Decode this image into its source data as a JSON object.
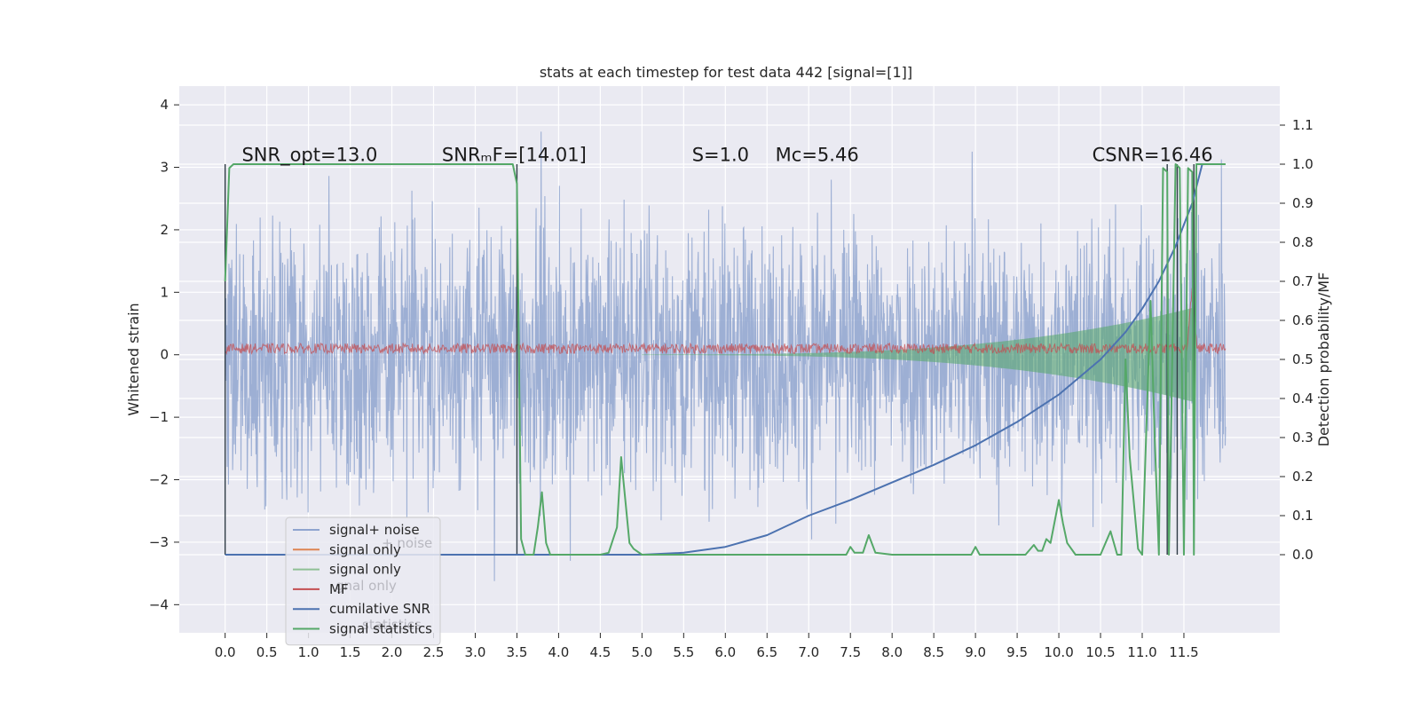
{
  "chart_data": {
    "type": "line",
    "title": "stats at each timestep for test data 442 [signal=[1]]",
    "xlabel": "",
    "ylabel": "Whitened strain",
    "y2label": "Detection probability/MF",
    "xlim": [
      -0.55,
      12.65
    ],
    "ylim": [
      -4.45,
      4.3
    ],
    "y2lim": [
      -0.2,
      1.2
    ],
    "xticks": [
      "0.0",
      "0.5",
      "1.0",
      "1.5",
      "2.0",
      "2.5",
      "3.0",
      "3.5",
      "4.0",
      "4.5",
      "5.0",
      "5.5",
      "6.0",
      "6.5",
      "7.0",
      "7.5",
      "8.0",
      "8.5",
      "9.0",
      "9.5",
      "10.0",
      "10.5",
      "11.0",
      "11.5"
    ],
    "yticks": [
      "4",
      "3",
      "2",
      "1",
      "0",
      "−1",
      "−2",
      "−3",
      "−4"
    ],
    "y2ticks": [
      "1.1",
      "1.0",
      "0.9",
      "0.8",
      "0.7",
      "0.6",
      "0.5",
      "0.4",
      "0.3",
      "0.2",
      "0.1",
      "0.0"
    ],
    "grid": true,
    "legend_position": "lower-left",
    "annotations": [
      {
        "id": "snr-opt",
        "text": "SNR_opt=13.0",
        "x": 0.2,
        "y": 3.1
      },
      {
        "id": "snr-mf",
        "text": "SNRₘF=[14.01]",
        "x": 2.6,
        "y": 3.1
      },
      {
        "id": "s-value",
        "text": "S=1.0",
        "x": 5.6,
        "y": 3.1
      },
      {
        "id": "mc-value",
        "text": "Mᴄ=5.46",
        "x": 6.6,
        "y": 3.1
      },
      {
        "id": "csnr",
        "text": "CSNR=16.46",
        "x": 10.4,
        "y": 3.1
      }
    ],
    "legend": [
      {
        "label": "signal+ noise",
        "color": "#8fa4cf"
      },
      {
        "label": "signal only",
        "color": "#dd8452"
      },
      {
        "label": "signal only",
        "color": "#8fc095"
      },
      {
        "label": "MF",
        "color": "#c44e52"
      },
      {
        "label": "cumilative SNR",
        "color": "#4c72b0"
      },
      {
        "label": "signal statistics",
        "color": "#55a868"
      }
    ],
    "legend_ghost_text": [
      "+ noise",
      "gnal only",
      "statistics"
    ],
    "series": [
      {
        "name": "cumilative SNR",
        "axis": "y2",
        "color": "#4c72b0",
        "x": [
          0,
          5.0,
          5.5,
          6.0,
          6.5,
          7.0,
          7.5,
          8.0,
          8.5,
          9.0,
          9.5,
          10.0,
          10.5,
          10.8,
          11.0,
          11.2,
          11.4,
          11.6,
          11.72
        ],
        "values": [
          0.0,
          0.0,
          0.005,
          0.02,
          0.05,
          0.1,
          0.14,
          0.185,
          0.23,
          0.28,
          0.34,
          0.41,
          0.5,
          0.57,
          0.63,
          0.7,
          0.79,
          0.9,
          1.0
        ]
      },
      {
        "name": "signal statistics",
        "axis": "y2",
        "color": "#55a868",
        "x": [
          0,
          0.05,
          0.1,
          1.0,
          2.0,
          3.0,
          3.45,
          3.5,
          3.55,
          3.6,
          3.7,
          3.75,
          3.8,
          3.85,
          3.9,
          4.0,
          4.5,
          4.6,
          4.7,
          4.75,
          4.8,
          4.85,
          4.9,
          5.0,
          5.2,
          7.0,
          7.45,
          7.5,
          7.55,
          7.65,
          7.72,
          7.8,
          8.0,
          8.95,
          9.0,
          9.05,
          9.6,
          9.7,
          9.75,
          9.8,
          9.85,
          9.9,
          10.0,
          10.05,
          10.1,
          10.2,
          10.5,
          10.62,
          10.7,
          10.75,
          10.8,
          10.85,
          10.95,
          11.0,
          11.1,
          11.15,
          11.2,
          11.25,
          11.3,
          11.32,
          11.4,
          11.45,
          11.5,
          11.55,
          11.6,
          11.62,
          11.65,
          11.7,
          11.75,
          12.0
        ],
        "values": [
          0.7,
          0.99,
          1.0,
          1.0,
          1.0,
          1.0,
          1.0,
          0.95,
          0.04,
          0.0,
          0.0,
          0.07,
          0.16,
          0.03,
          0.0,
          0.0,
          0.0,
          0.005,
          0.07,
          0.25,
          0.14,
          0.03,
          0.015,
          0.0,
          0.0,
          0.0,
          0.0,
          0.02,
          0.005,
          0.005,
          0.05,
          0.005,
          0.0,
          0.0,
          0.02,
          0.0,
          0.0,
          0.025,
          0.01,
          0.01,
          0.04,
          0.03,
          0.14,
          0.08,
          0.03,
          0.0,
          0.0,
          0.06,
          0.0,
          0.0,
          0.5,
          0.25,
          0.015,
          0.0,
          0.65,
          0.3,
          0.0,
          0.99,
          0.98,
          0.0,
          1.0,
          0.99,
          0.0,
          0.99,
          0.98,
          0.0,
          1.0,
          1.0,
          1.0,
          1.0
        ]
      },
      {
        "name": "signal+ noise",
        "axis": "y",
        "color": "#8fa4cf",
        "x_range": [
          0.0,
          12.0
        ],
        "typical_abs_max": 2.3,
        "peak_range": [
          -4.1,
          3.9
        ],
        "style": "dense noise band"
      },
      {
        "name": "MF",
        "axis": "y",
        "color": "#c44e52",
        "x_range": [
          0.0,
          12.0
        ],
        "baseline": 0.1,
        "noise_amp": 0.08,
        "spike": {
          "x": 11.6,
          "value": 1.1
        }
      },
      {
        "name": "signal only",
        "axis": "y",
        "color": "#55a868",
        "x_range": [
          5.0,
          11.62
        ],
        "envelope_start": 0.0,
        "envelope_end": 0.75,
        "style": "chirp envelope"
      }
    ],
    "vertical_lines": [
      {
        "x": 0.0,
        "y2_from": -0.0,
        "y2_to": 1.0
      },
      {
        "x": 3.5,
        "y2_from": 0.0,
        "y2_to": 1.0
      },
      {
        "x": 11.3,
        "y2_from": 0.0,
        "y2_to": 1.0
      },
      {
        "x": 11.42,
        "y2_from": 0.0,
        "y2_to": 1.0
      },
      {
        "x": 11.62,
        "y2_from": 0.0,
        "y2_to": 1.0
      }
    ]
  }
}
